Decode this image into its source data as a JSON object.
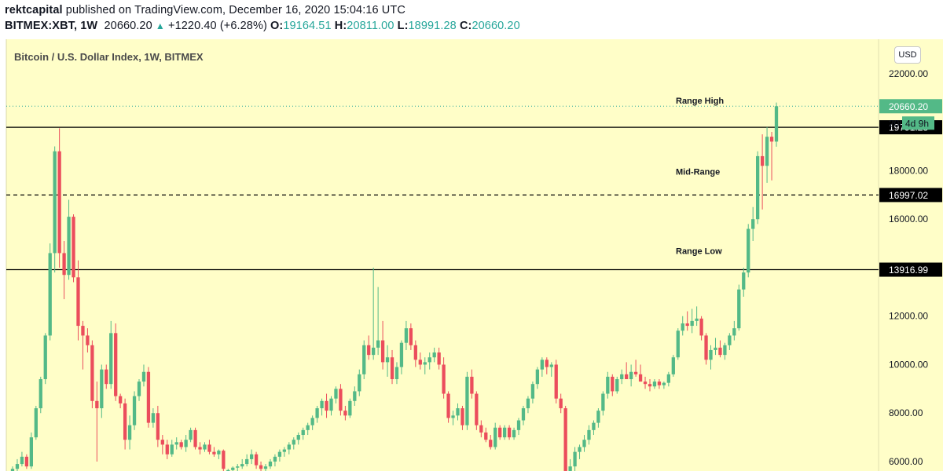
{
  "header": {
    "author": "rektcapital",
    "published_text": "published on TradingView.com, December 16, 2020 15:04:16 UTC",
    "symbol": "BITMEX:XBT, 1W",
    "last_price": "20660.20",
    "change": "+1220.40 (+6.28%)",
    "open_label": "O:",
    "open": "19164.51",
    "high_label": "H:",
    "high": "20811.00",
    "low_label": "L:",
    "low": "18991.28",
    "close_label": "C:",
    "close": "20660.20"
  },
  "chart_title": "Bitcoin / U.S. Dollar Index, 1W, BITMEX",
  "currency_button": "USD",
  "colors": {
    "background": "#fffec8",
    "up_candle": "#53b987",
    "down_candle": "#eb4d5c",
    "accent": "#26a69a",
    "level_label_bg": "#000000"
  },
  "chart_data": {
    "type": "candlestick",
    "title": "Bitcoin / U.S. Dollar Index, 1W, BITMEX",
    "ylim": [
      5500,
      23500
    ],
    "y_ticks": [
      "22000.00",
      "18000.00",
      "16000.00",
      "12000.00",
      "10000.00",
      "8000.00",
      "6000.00"
    ],
    "horizontal_levels": [
      {
        "name": "Range High",
        "value": 19791.28,
        "label": "19791.28",
        "style": "solid"
      },
      {
        "name": "Mid-Range",
        "value": 16997.02,
        "label": "16997.02",
        "style": "dashed"
      },
      {
        "name": "Range Low",
        "value": 13916.99,
        "label": "13916.99",
        "style": "solid"
      }
    ],
    "current_price": {
      "value": 20660.2,
      "label": "20660.20",
      "countdown": "4d 9h",
      "partial_tick": "200"
    },
    "candles": [
      {
        "o": 5500,
        "h": 5800,
        "l": 5300,
        "c": 5700
      },
      {
        "o": 5700,
        "h": 6100,
        "l": 5600,
        "c": 5900
      },
      {
        "o": 5900,
        "h": 6400,
        "l": 5800,
        "c": 6200
      },
      {
        "o": 6200,
        "h": 6300,
        "l": 5700,
        "c": 5800
      },
      {
        "o": 5800,
        "h": 7200,
        "l": 5700,
        "c": 7000
      },
      {
        "o": 7000,
        "h": 8300,
        "l": 6900,
        "c": 8200
      },
      {
        "o": 8200,
        "h": 9500,
        "l": 8000,
        "c": 9400
      },
      {
        "o": 9400,
        "h": 11300,
        "l": 9200,
        "c": 11200
      },
      {
        "o": 11200,
        "h": 15000,
        "l": 11000,
        "c": 14600
      },
      {
        "o": 14600,
        "h": 19000,
        "l": 13800,
        "c": 18800
      },
      {
        "o": 18800,
        "h": 19750,
        "l": 14000,
        "c": 14600
      },
      {
        "o": 14600,
        "h": 15100,
        "l": 12700,
        "c": 13700
      },
      {
        "o": 13700,
        "h": 16800,
        "l": 13500,
        "c": 16100
      },
      {
        "o": 16100,
        "h": 16200,
        "l": 13400,
        "c": 13600
      },
      {
        "o": 13600,
        "h": 14300,
        "l": 11000,
        "c": 11600
      },
      {
        "o": 11600,
        "h": 11800,
        "l": 9800,
        "c": 11200
      },
      {
        "o": 11200,
        "h": 11500,
        "l": 10500,
        "c": 10800
      },
      {
        "o": 10800,
        "h": 11000,
        "l": 8200,
        "c": 8500
      },
      {
        "o": 8500,
        "h": 9300,
        "l": 6000,
        "c": 8200
      },
      {
        "o": 8200,
        "h": 10000,
        "l": 7800,
        "c": 9800
      },
      {
        "o": 9800,
        "h": 10000,
        "l": 9000,
        "c": 9200
      },
      {
        "o": 9200,
        "h": 11800,
        "l": 9000,
        "c": 11300
      },
      {
        "o": 11300,
        "h": 11700,
        "l": 8500,
        "c": 8700
      },
      {
        "o": 8700,
        "h": 8800,
        "l": 8200,
        "c": 8400
      },
      {
        "o": 8400,
        "h": 8600,
        "l": 6500,
        "c": 6900
      },
      {
        "o": 6900,
        "h": 7900,
        "l": 6500,
        "c": 7500
      },
      {
        "o": 7500,
        "h": 8900,
        "l": 7300,
        "c": 8700
      },
      {
        "o": 8700,
        "h": 9400,
        "l": 8500,
        "c": 9300
      },
      {
        "o": 9300,
        "h": 10000,
        "l": 9100,
        "c": 9700
      },
      {
        "o": 9700,
        "h": 9900,
        "l": 7400,
        "c": 7600
      },
      {
        "o": 7600,
        "h": 8200,
        "l": 7400,
        "c": 8000
      },
      {
        "o": 8000,
        "h": 8300,
        "l": 6600,
        "c": 6900
      },
      {
        "o": 6900,
        "h": 7100,
        "l": 6300,
        "c": 6700
      },
      {
        "o": 6700,
        "h": 6900,
        "l": 6100,
        "c": 6300
      },
      {
        "o": 6300,
        "h": 6900,
        "l": 6200,
        "c": 6700
      },
      {
        "o": 6700,
        "h": 7000,
        "l": 6500,
        "c": 6800
      },
      {
        "o": 6800,
        "h": 6900,
        "l": 6500,
        "c": 6600
      },
      {
        "o": 6600,
        "h": 7100,
        "l": 6400,
        "c": 6900
      },
      {
        "o": 6900,
        "h": 7400,
        "l": 6800,
        "c": 7300
      },
      {
        "o": 7300,
        "h": 7400,
        "l": 6500,
        "c": 6600
      },
      {
        "o": 6600,
        "h": 6800,
        "l": 6300,
        "c": 6500
      },
      {
        "o": 6500,
        "h": 6800,
        "l": 6400,
        "c": 6700
      },
      {
        "o": 6700,
        "h": 6900,
        "l": 6300,
        "c": 6400
      },
      {
        "o": 6400,
        "h": 6600,
        "l": 6200,
        "c": 6300
      },
      {
        "o": 6300,
        "h": 6500,
        "l": 6100,
        "c": 6450
      },
      {
        "o": 6450,
        "h": 6500,
        "l": 5600,
        "c": 5700
      },
      {
        "o": 5600,
        "h": 5700,
        "l": 5500,
        "c": 5650
      },
      {
        "o": 5650,
        "h": 5800,
        "l": 5500,
        "c": 5750
      },
      {
        "o": 5750,
        "h": 5900,
        "l": 5600,
        "c": 5800
      },
      {
        "o": 5800,
        "h": 6100,
        "l": 5700,
        "c": 5900
      },
      {
        "o": 5900,
        "h": 6300,
        "l": 5800,
        "c": 6100
      },
      {
        "o": 6100,
        "h": 6500,
        "l": 5900,
        "c": 6300
      },
      {
        "o": 6300,
        "h": 6400,
        "l": 5700,
        "c": 5850
      },
      {
        "o": 5850,
        "h": 6000,
        "l": 5600,
        "c": 5700
      },
      {
        "o": 5700,
        "h": 5900,
        "l": 5500,
        "c": 5800
      },
      {
        "o": 5800,
        "h": 6100,
        "l": 5700,
        "c": 6000
      },
      {
        "o": 6000,
        "h": 6300,
        "l": 5800,
        "c": 6200
      },
      {
        "o": 6200,
        "h": 6500,
        "l": 6000,
        "c": 6400
      },
      {
        "o": 6400,
        "h": 6600,
        "l": 6200,
        "c": 6500
      },
      {
        "o": 6500,
        "h": 6800,
        "l": 6300,
        "c": 6700
      },
      {
        "o": 6700,
        "h": 7000,
        "l": 6500,
        "c": 6900
      },
      {
        "o": 6900,
        "h": 7200,
        "l": 6700,
        "c": 7100
      },
      {
        "o": 7100,
        "h": 7400,
        "l": 6900,
        "c": 7300
      },
      {
        "o": 7300,
        "h": 7600,
        "l": 7100,
        "c": 7500
      },
      {
        "o": 7500,
        "h": 7900,
        "l": 7300,
        "c": 7800
      },
      {
        "o": 7800,
        "h": 8300,
        "l": 7600,
        "c": 8200
      },
      {
        "o": 8200,
        "h": 8600,
        "l": 7900,
        "c": 8500
      },
      {
        "o": 8500,
        "h": 8800,
        "l": 7800,
        "c": 8100
      },
      {
        "o": 8100,
        "h": 8700,
        "l": 7900,
        "c": 8600
      },
      {
        "o": 8600,
        "h": 9100,
        "l": 8400,
        "c": 9000
      },
      {
        "o": 9000,
        "h": 9200,
        "l": 7900,
        "c": 8100
      },
      {
        "o": 8100,
        "h": 8300,
        "l": 7700,
        "c": 7900
      },
      {
        "o": 7900,
        "h": 8600,
        "l": 7800,
        "c": 8500
      },
      {
        "o": 8500,
        "h": 9100,
        "l": 8300,
        "c": 8900
      },
      {
        "o": 8900,
        "h": 9800,
        "l": 8700,
        "c": 9600
      },
      {
        "o": 9600,
        "h": 11000,
        "l": 9400,
        "c": 10800
      },
      {
        "o": 10800,
        "h": 11200,
        "l": 10200,
        "c": 10400
      },
      {
        "o": 10400,
        "h": 14000,
        "l": 10200,
        "c": 10700
      },
      {
        "o": 10700,
        "h": 13200,
        "l": 10400,
        "c": 11000
      },
      {
        "o": 11000,
        "h": 11800,
        "l": 9800,
        "c": 10100
      },
      {
        "o": 10100,
        "h": 10800,
        "l": 9500,
        "c": 10300
      },
      {
        "o": 10300,
        "h": 10600,
        "l": 9200,
        "c": 9400
      },
      {
        "o": 9400,
        "h": 10100,
        "l": 9200,
        "c": 9900
      },
      {
        "o": 9900,
        "h": 11000,
        "l": 9600,
        "c": 10900
      },
      {
        "o": 10900,
        "h": 11800,
        "l": 10600,
        "c": 11500
      },
      {
        "o": 11500,
        "h": 11700,
        "l": 10600,
        "c": 10800
      },
      {
        "o": 10800,
        "h": 11000,
        "l": 9900,
        "c": 10200
      },
      {
        "o": 10200,
        "h": 10500,
        "l": 9800,
        "c": 10000
      },
      {
        "o": 10000,
        "h": 10300,
        "l": 9600,
        "c": 10100
      },
      {
        "o": 10100,
        "h": 10500,
        "l": 9800,
        "c": 10300
      },
      {
        "o": 10300,
        "h": 10700,
        "l": 10100,
        "c": 10500
      },
      {
        "o": 10500,
        "h": 10700,
        "l": 9800,
        "c": 10000
      },
      {
        "o": 10000,
        "h": 10300,
        "l": 8600,
        "c": 8800
      },
      {
        "o": 8800,
        "h": 8900,
        "l": 7600,
        "c": 7800
      },
      {
        "o": 7800,
        "h": 8100,
        "l": 7500,
        "c": 7900
      },
      {
        "o": 7900,
        "h": 8400,
        "l": 7700,
        "c": 8200
      },
      {
        "o": 8200,
        "h": 8300,
        "l": 7300,
        "c": 7500
      },
      {
        "o": 7500,
        "h": 9700,
        "l": 7300,
        "c": 9500
      },
      {
        "o": 9500,
        "h": 9800,
        "l": 8600,
        "c": 8800
      },
      {
        "o": 8800,
        "h": 8900,
        "l": 7300,
        "c": 7500
      },
      {
        "o": 7500,
        "h": 7700,
        "l": 7000,
        "c": 7200
      },
      {
        "o": 7200,
        "h": 7400,
        "l": 6800,
        "c": 6900
      },
      {
        "o": 6900,
        "h": 7100,
        "l": 6500,
        "c": 6600
      },
      {
        "o": 6600,
        "h": 7600,
        "l": 6500,
        "c": 7400
      },
      {
        "o": 7400,
        "h": 7500,
        "l": 6900,
        "c": 7000
      },
      {
        "o": 7000,
        "h": 7500,
        "l": 6900,
        "c": 7400
      },
      {
        "o": 7400,
        "h": 7500,
        "l": 6900,
        "c": 7000
      },
      {
        "o": 7000,
        "h": 7400,
        "l": 6900,
        "c": 7300
      },
      {
        "o": 7300,
        "h": 7800,
        "l": 7100,
        "c": 7700
      },
      {
        "o": 7700,
        "h": 8300,
        "l": 7500,
        "c": 8200
      },
      {
        "o": 8200,
        "h": 8700,
        "l": 8000,
        "c": 8600
      },
      {
        "o": 8600,
        "h": 9300,
        "l": 8400,
        "c": 9200
      },
      {
        "o": 9200,
        "h": 9900,
        "l": 9000,
        "c": 9800
      },
      {
        "o": 9800,
        "h": 10300,
        "l": 9500,
        "c": 10200
      },
      {
        "o": 10200,
        "h": 10300,
        "l": 9600,
        "c": 9900
      },
      {
        "o": 9900,
        "h": 10100,
        "l": 9500,
        "c": 10000
      },
      {
        "o": 10000,
        "h": 10200,
        "l": 8400,
        "c": 8600
      },
      {
        "o": 8600,
        "h": 8800,
        "l": 8000,
        "c": 8200
      },
      {
        "o": 8200,
        "h": 8300,
        "l": 4800,
        "c": 5200
      },
      {
        "o": 5200,
        "h": 6100,
        "l": 5000,
        "c": 5800
      },
      {
        "o": 5800,
        "h": 6600,
        "l": 5600,
        "c": 6400
      },
      {
        "o": 6400,
        "h": 6700,
        "l": 6100,
        "c": 6600
      },
      {
        "o": 6600,
        "h": 7100,
        "l": 6400,
        "c": 6900
      },
      {
        "o": 6900,
        "h": 7500,
        "l": 6700,
        "c": 7300
      },
      {
        "o": 7300,
        "h": 7700,
        "l": 7100,
        "c": 7600
      },
      {
        "o": 7600,
        "h": 8200,
        "l": 7400,
        "c": 8100
      },
      {
        "o": 8100,
        "h": 8900,
        "l": 7900,
        "c": 8800
      },
      {
        "o": 8800,
        "h": 9700,
        "l": 8600,
        "c": 9500
      },
      {
        "o": 9500,
        "h": 9600,
        "l": 8700,
        "c": 8900
      },
      {
        "o": 8900,
        "h": 9500,
        "l": 8800,
        "c": 9400
      },
      {
        "o": 9400,
        "h": 9800,
        "l": 9200,
        "c": 9600
      },
      {
        "o": 9600,
        "h": 10100,
        "l": 9400,
        "c": 9400
      },
      {
        "o": 9400,
        "h": 10000,
        "l": 9100,
        "c": 9700
      },
      {
        "o": 9700,
        "h": 10200,
        "l": 9500,
        "c": 9600
      },
      {
        "o": 9600,
        "h": 10000,
        "l": 9300,
        "c": 9300
      },
      {
        "o": 9300,
        "h": 9500,
        "l": 9000,
        "c": 9200
      },
      {
        "o": 9200,
        "h": 9400,
        "l": 8900,
        "c": 9100
      },
      {
        "o": 9100,
        "h": 9400,
        "l": 9000,
        "c": 9300
      },
      {
        "o": 9300,
        "h": 9400,
        "l": 9000,
        "c": 9150
      },
      {
        "o": 9150,
        "h": 9300,
        "l": 9000,
        "c": 9250
      },
      {
        "o": 9250,
        "h": 9700,
        "l": 9100,
        "c": 9600
      },
      {
        "o": 9600,
        "h": 10400,
        "l": 9500,
        "c": 10300
      },
      {
        "o": 10300,
        "h": 11500,
        "l": 10200,
        "c": 11400
      },
      {
        "o": 11400,
        "h": 12000,
        "l": 11200,
        "c": 11700
      },
      {
        "o": 11700,
        "h": 12200,
        "l": 11400,
        "c": 11600
      },
      {
        "o": 11600,
        "h": 12300,
        "l": 11300,
        "c": 11800
      },
      {
        "o": 11800,
        "h": 12400,
        "l": 11600,
        "c": 11900
      },
      {
        "o": 11900,
        "h": 12000,
        "l": 11000,
        "c": 11200
      },
      {
        "o": 11200,
        "h": 11300,
        "l": 10000,
        "c": 10200
      },
      {
        "o": 10200,
        "h": 10800,
        "l": 9800,
        "c": 10600
      },
      {
        "o": 10600,
        "h": 11100,
        "l": 10400,
        "c": 10700
      },
      {
        "o": 10700,
        "h": 11000,
        "l": 10300,
        "c": 10400
      },
      {
        "o": 10400,
        "h": 10900,
        "l": 10200,
        "c": 10800
      },
      {
        "o": 10800,
        "h": 11300,
        "l": 10600,
        "c": 11200
      },
      {
        "o": 11200,
        "h": 11800,
        "l": 11000,
        "c": 11500
      },
      {
        "o": 11500,
        "h": 13300,
        "l": 11400,
        "c": 13100
      },
      {
        "o": 13100,
        "h": 14000,
        "l": 12800,
        "c": 13800
      },
      {
        "o": 13800,
        "h": 15800,
        "l": 13600,
        "c": 15600
      },
      {
        "o": 15600,
        "h": 16500,
        "l": 15100,
        "c": 16000
      },
      {
        "o": 16000,
        "h": 18800,
        "l": 15800,
        "c": 18600
      },
      {
        "o": 18600,
        "h": 19500,
        "l": 16400,
        "c": 18200
      },
      {
        "o": 18200,
        "h": 19800,
        "l": 17500,
        "c": 19400
      },
      {
        "o": 19400,
        "h": 19600,
        "l": 17600,
        "c": 19200
      },
      {
        "o": 19200,
        "h": 20811,
        "l": 18991,
        "c": 20660
      }
    ]
  }
}
